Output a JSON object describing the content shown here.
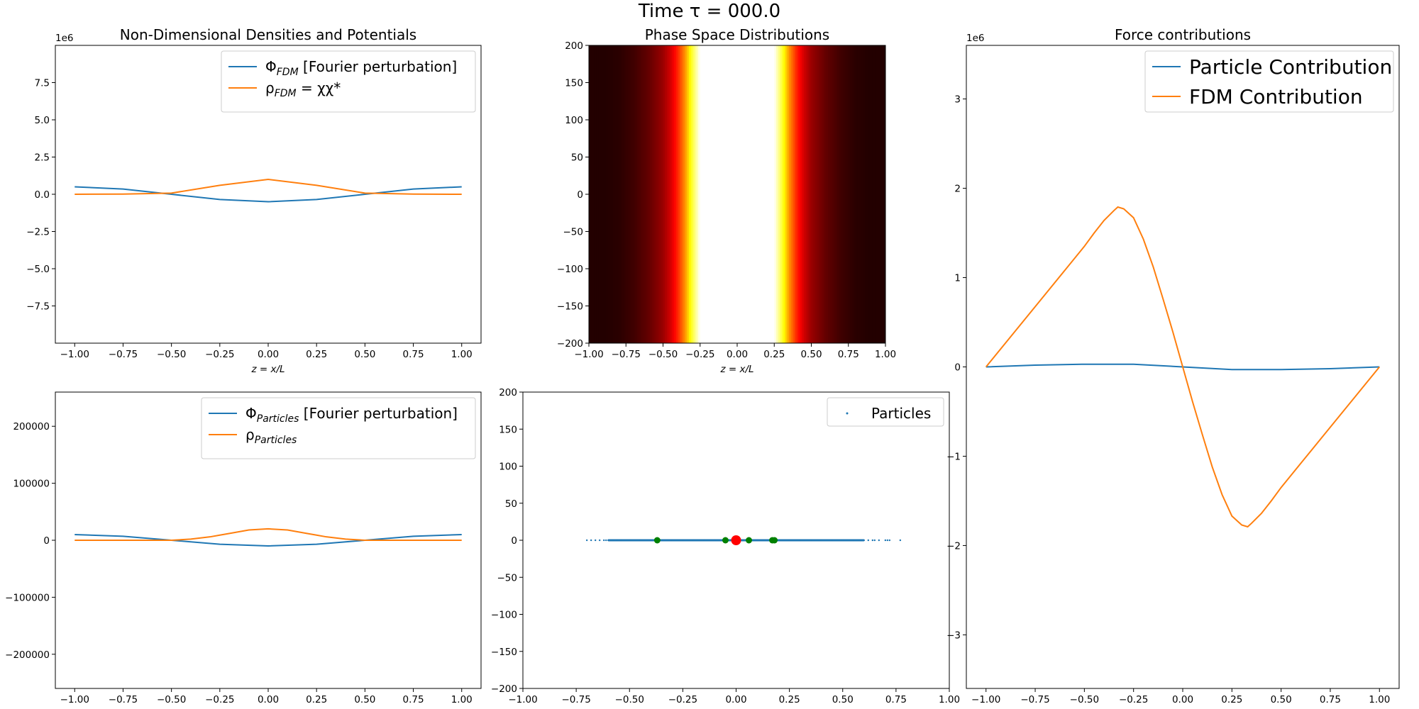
{
  "figure": {
    "suptitle": "Time τ = 000.0"
  },
  "colors": {
    "blue": "#1f77b4",
    "orange": "#ff7f0e",
    "green": "#2ca02c",
    "red": "#ff0000"
  },
  "chart_data": [
    {
      "id": "densities-fdm",
      "type": "line",
      "title": "Non-Dimensional Densities and Potentials",
      "xlabel": "z = x/L",
      "ylabel": "",
      "scale_label": "1e6",
      "xlim": [
        -1.1,
        1.1
      ],
      "ylim": [
        -10000000,
        10000000
      ],
      "xticks": [
        -1.0,
        -0.75,
        -0.5,
        -0.25,
        0.0,
        0.25,
        0.5,
        0.75,
        1.0
      ],
      "xticklabels": [
        "−1.00",
        "−0.75",
        "−0.50",
        "−0.25",
        "0.00",
        "0.25",
        "0.50",
        "0.75",
        "1.00"
      ],
      "yticks": [
        -7500000,
        -5000000,
        -2500000,
        0,
        2500000,
        5000000,
        7500000
      ],
      "yticklabels": [
        "−7.5",
        "−5.0",
        "−2.5",
        "0.0",
        "2.5",
        "5.0",
        "7.5"
      ],
      "legend": "top-right",
      "series": [
        {
          "name": "Φ",
          "sub": "FDM",
          "name_suffix": " [Fourier perturbation]",
          "color": "#1f77b4",
          "x": [
            -1.0,
            -0.75,
            -0.5,
            -0.25,
            0.0,
            0.25,
            0.5,
            0.75,
            1.0
          ],
          "y": [
            500000,
            350000,
            0,
            -350000,
            -500000,
            -350000,
            0,
            350000,
            500000
          ]
        },
        {
          "name": "ρ",
          "sub": "FDM",
          "name_suffix": " = χχ*",
          "color": "#ff7f0e",
          "x": [
            -1.0,
            -0.75,
            -0.5,
            -0.25,
            0.0,
            0.25,
            0.5,
            0.75,
            1.0
          ],
          "y": [
            0,
            10000,
            80000,
            600000,
            1000000,
            600000,
            80000,
            10000,
            0
          ]
        }
      ]
    },
    {
      "id": "phase-space",
      "type": "heatmap",
      "title": "Phase Space Distributions",
      "xlabel": "z = x/L",
      "ylabel": "",
      "xlim": [
        -1.0,
        1.0
      ],
      "ylim": [
        -200,
        200
      ],
      "xticks": [
        -1.0,
        -0.75,
        -0.5,
        -0.25,
        0.0,
        0.25,
        0.5,
        0.75,
        1.0
      ],
      "xticklabels": [
        "−1.00",
        "−0.75",
        "−0.50",
        "−0.25",
        "0.00",
        "0.25",
        "0.50",
        "0.75",
        "1.00"
      ],
      "yticks": [
        -200,
        -150,
        -100,
        -50,
        0,
        50,
        100,
        150,
        200
      ],
      "yticklabels": [
        "−200",
        "−150",
        "−100",
        "−50",
        "0",
        "50",
        "100",
        "150",
        "200"
      ],
      "colormap": "hot",
      "intensity_x": [
        -1.0,
        -0.9,
        -0.8,
        -0.7,
        -0.6,
        -0.5,
        -0.45,
        -0.4,
        -0.35,
        -0.3,
        -0.25,
        0.25,
        0.3,
        0.35,
        0.4,
        0.45,
        0.5,
        0.6,
        0.7,
        0.8,
        0.9,
        1.0
      ],
      "intensity_v": [
        0.05,
        0.05,
        0.06,
        0.09,
        0.14,
        0.22,
        0.3,
        0.42,
        0.58,
        0.8,
        1.0,
        1.0,
        0.8,
        0.58,
        0.42,
        0.3,
        0.22,
        0.14,
        0.09,
        0.06,
        0.05,
        0.05
      ]
    },
    {
      "id": "forces",
      "type": "line",
      "title": "Force contributions",
      "xlabel": "",
      "ylabel": "",
      "scale_label": "1e6",
      "xlim": [
        -1.1,
        1.1
      ],
      "ylim": [
        -3600000,
        3600000
      ],
      "xticks": [
        -1.0,
        -0.75,
        -0.5,
        -0.25,
        0.0,
        0.25,
        0.5,
        0.75,
        1.0
      ],
      "xticklabels": [
        "−1.00",
        "−0.75",
        "−0.50",
        "−0.25",
        "0.00",
        "0.25",
        "0.50",
        "0.75",
        "1.00"
      ],
      "yticks": [
        -3000000,
        -2000000,
        -1000000,
        0,
        1000000,
        2000000,
        3000000
      ],
      "yticklabels": [
        "−3",
        "−2",
        "−1",
        "0",
        "1",
        "2",
        "3"
      ],
      "legend": "top-right",
      "series": [
        {
          "name": "Particle Contribution",
          "color": "#1f77b4",
          "x": [
            -1.0,
            -0.75,
            -0.5,
            -0.25,
            0.0,
            0.25,
            0.5,
            0.75,
            1.0
          ],
          "y": [
            0,
            20000,
            30000,
            30000,
            0,
            -30000,
            -30000,
            -20000,
            0
          ]
        },
        {
          "name": "FDM Contribution",
          "color": "#ff7f0e",
          "x": [
            -1.0,
            -0.9,
            -0.8,
            -0.7,
            -0.6,
            -0.5,
            -0.45,
            -0.4,
            -0.35,
            -0.33,
            -0.3,
            -0.25,
            -0.2,
            -0.15,
            -0.1,
            -0.05,
            0.0,
            0.05,
            0.1,
            0.15,
            0.2,
            0.25,
            0.3,
            0.33,
            0.35,
            0.4,
            0.45,
            0.5,
            0.6,
            0.7,
            0.8,
            0.9,
            1.0
          ],
          "y": [
            0,
            270000,
            540000,
            810000,
            1080000,
            1350000,
            1500000,
            1640000,
            1750000,
            1790000,
            1770000,
            1670000,
            1430000,
            1120000,
            760000,
            390000,
            0,
            -390000,
            -760000,
            -1120000,
            -1430000,
            -1670000,
            -1770000,
            -1790000,
            -1750000,
            -1640000,
            -1500000,
            -1350000,
            -1080000,
            -810000,
            -540000,
            -270000,
            0
          ]
        }
      ]
    },
    {
      "id": "densities-particles",
      "type": "line",
      "title": "",
      "xlabel": "",
      "ylabel": "",
      "xlim": [
        -1.1,
        1.1
      ],
      "ylim": [
        -260000,
        260000
      ],
      "xticks": [
        -1.0,
        -0.75,
        -0.5,
        -0.25,
        0.0,
        0.25,
        0.5,
        0.75,
        1.0
      ],
      "xticklabels": [
        "−1.00",
        "−0.75",
        "−0.50",
        "−0.25",
        "0.00",
        "0.25",
        "0.50",
        "0.75",
        "1.00"
      ],
      "yticks": [
        -200000,
        -100000,
        0,
        100000,
        200000
      ],
      "yticklabels": [
        "−200000",
        "−100000",
        "0",
        "100000",
        "200000"
      ],
      "legend": "top-right",
      "series": [
        {
          "name": "Φ",
          "sub": "Particles",
          "name_suffix": " [Fourier perturbation]",
          "color": "#1f77b4",
          "x": [
            -1.0,
            -0.75,
            -0.5,
            -0.25,
            0.0,
            0.25,
            0.5,
            0.75,
            1.0
          ],
          "y": [
            10000,
            7000,
            0,
            -7000,
            -10000,
            -7000,
            0,
            7000,
            10000
          ]
        },
        {
          "name": "ρ",
          "sub": "Particles",
          "color": "#ff7f0e",
          "x": [
            -1.0,
            -0.75,
            -0.5,
            -0.4,
            -0.3,
            -0.25,
            -0.2,
            -0.1,
            0.0,
            0.1,
            0.2,
            0.25,
            0.3,
            0.4,
            0.5,
            0.75,
            1.0
          ],
          "y": [
            0,
            0,
            0,
            2000,
            6000,
            9000,
            12000,
            18000,
            20000,
            18000,
            12000,
            9000,
            6000,
            2000,
            0,
            0,
            0
          ]
        }
      ]
    },
    {
      "id": "particles-phase",
      "type": "scatter",
      "title": "",
      "xlabel": "",
      "ylabel": "",
      "xlim": [
        -1.0,
        1.0
      ],
      "ylim": [
        -200,
        200
      ],
      "xticks": [
        -1.0,
        -0.75,
        -0.5,
        -0.25,
        0.0,
        0.25,
        0.5,
        0.75,
        1.0
      ],
      "xticklabels": [
        "−1.00",
        "−0.75",
        "−0.50",
        "−0.25",
        "0.00",
        "0.25",
        "0.50",
        "0.75",
        "1.00"
      ],
      "yticks": [
        -200,
        -150,
        -100,
        -50,
        0,
        50,
        100,
        150,
        200
      ],
      "yticklabels": [
        "−200",
        "−150",
        "−100",
        "−50",
        "0",
        "50",
        "100",
        "150",
        "200"
      ],
      "legend": "top-right",
      "series": [
        {
          "name": "Particles",
          "color": "#1f77b4",
          "x": [
            -0.7,
            -0.68,
            -0.66,
            -0.64,
            -0.62,
            -0.61,
            -0.6,
            -0.58,
            -0.56,
            -0.54,
            -0.5,
            -0.45,
            -0.4,
            -0.35,
            -0.3,
            -0.25,
            -0.2,
            -0.15,
            -0.1,
            -0.05,
            0.0,
            0.05,
            0.1,
            0.15,
            0.2,
            0.25,
            0.3,
            0.35,
            0.4,
            0.45,
            0.5,
            0.55,
            0.58,
            0.6,
            0.62,
            0.64,
            0.65,
            0.67,
            0.7,
            0.71,
            0.72,
            0.77
          ],
          "y": [
            0,
            0,
            0,
            0,
            0,
            0,
            0,
            0,
            0,
            0,
            0,
            0,
            0,
            0,
            0,
            0,
            0,
            0,
            0,
            0,
            0,
            0,
            0,
            0,
            0,
            0,
            0,
            0,
            0,
            0,
            0,
            0,
            0,
            0,
            0,
            0,
            0,
            0,
            0,
            0,
            0,
            0
          ]
        },
        {
          "name": "",
          "color": "#008000",
          "marker_size": 4.5,
          "x": [
            -0.37,
            -0.05,
            0.06,
            0.17,
            0.18
          ],
          "y": [
            0,
            0,
            0,
            0,
            0
          ]
        },
        {
          "name": "",
          "color": "#ff0000",
          "marker_size": 7,
          "x": [
            0.0
          ],
          "y": [
            0
          ]
        }
      ]
    }
  ]
}
